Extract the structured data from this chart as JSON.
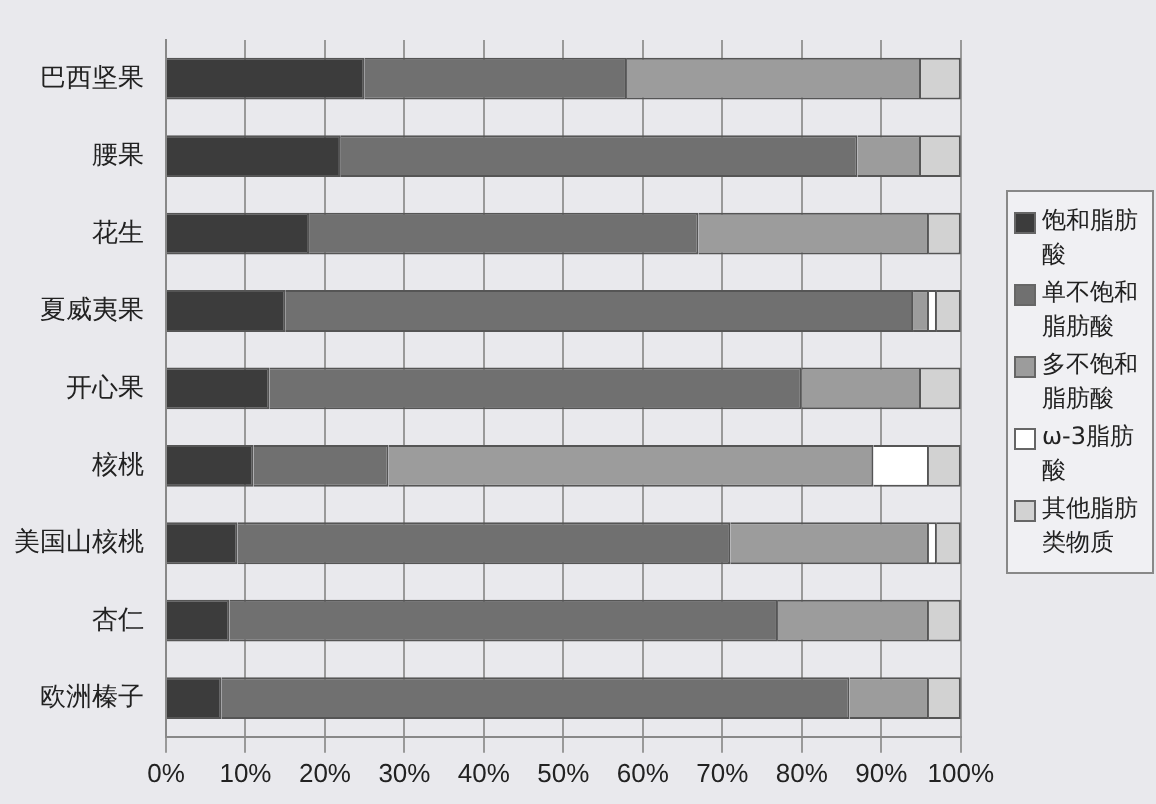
{
  "chart_data": {
    "type": "bar",
    "orientation": "horizontal",
    "stacked": true,
    "categories": [
      "巴西坚果",
      "腰果",
      "花生",
      "夏威夷果",
      "开心果",
      "核桃",
      "美国山核桃",
      "杏仁",
      "欧洲榛子"
    ],
    "series": [
      {
        "name": "饱和脂肪酸",
        "color": "#3c3c3c",
        "values": [
          25,
          22,
          18,
          15,
          13,
          11,
          9,
          8,
          7
        ]
      },
      {
        "name": "单不饱和脂肪酸",
        "color": "#707070",
        "values": [
          33,
          65,
          49,
          79,
          67,
          17,
          62,
          69,
          79
        ]
      },
      {
        "name": "多不饱和脂肪酸",
        "color": "#9c9c9c",
        "values": [
          37,
          8,
          29,
          2,
          15,
          61,
          25,
          19,
          10
        ]
      },
      {
        "name": "ω-3脂肪酸",
        "color": "#ffffff",
        "values": [
          0,
          0,
          0,
          1,
          0,
          7,
          1,
          0,
          0
        ]
      },
      {
        "name": "其他脂肪类物质",
        "color": "#d2d2d2",
        "values": [
          5,
          5,
          4,
          3,
          5,
          4,
          3,
          4,
          4
        ]
      }
    ],
    "xlim": [
      0,
      100
    ],
    "xticks": [
      {
        "value": 0,
        "label": "0%"
      },
      {
        "value": 10,
        "label": "10%"
      },
      {
        "value": 20,
        "label": "20%"
      },
      {
        "value": 30,
        "label": "30%"
      },
      {
        "value": 40,
        "label": "40%"
      },
      {
        "value": 50,
        "label": "50%"
      },
      {
        "value": 60,
        "label": "60%"
      },
      {
        "value": 70,
        "label": "70%"
      },
      {
        "value": 80,
        "label": "80%"
      },
      {
        "value": 90,
        "label": "90%"
      },
      {
        "value": 100,
        "label": "100%"
      }
    ],
    "grid": "x",
    "legend": "right"
  }
}
